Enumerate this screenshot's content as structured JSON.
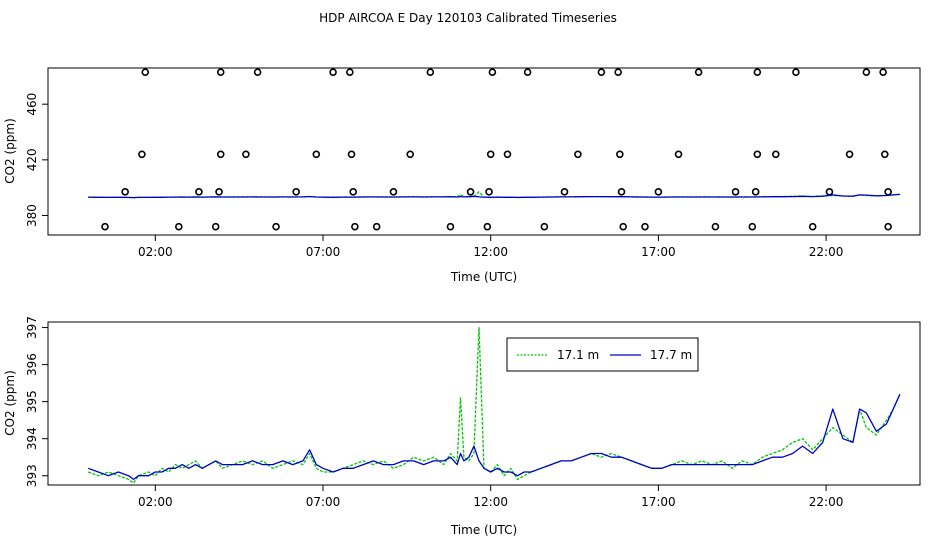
{
  "page_title": "HDP AIRCOA E  Day 120103  Calibrated Timeseries",
  "colors": {
    "series_171": "#00c800",
    "series_177": "#0000cc",
    "frame": "#000000"
  },
  "chart_data": [
    {
      "id": "top",
      "type": "scatter+line",
      "xlabel": "Time (UTC)",
      "ylabel": "CO2 (ppm)",
      "x_unit": "hours since 00:00 UTC",
      "xlim": [
        -1.2,
        24.8
      ],
      "ylim": [
        366,
        486
      ],
      "x_ticks": [
        2,
        7,
        12,
        17,
        22
      ],
      "x_tick_labels": [
        "02:00",
        "07:00",
        "12:00",
        "17:00",
        "22:00"
      ],
      "y_ticks": [
        380,
        420,
        460
      ],
      "y_tick_labels": [
        "380",
        "420",
        "460"
      ],
      "markers": {
        "name": "flag markers",
        "points": [
          [
            0.5,
            372
          ],
          [
            1.1,
            397
          ],
          [
            1.6,
            424
          ],
          [
            1.7,
            483
          ],
          [
            2.7,
            372
          ],
          [
            3.3,
            397
          ],
          [
            3.8,
            372
          ],
          [
            3.9,
            397
          ],
          [
            3.95,
            424
          ],
          [
            3.95,
            483
          ],
          [
            4.7,
            424
          ],
          [
            5.05,
            483
          ],
          [
            5.6,
            372
          ],
          [
            6.2,
            397
          ],
          [
            6.8,
            424
          ],
          [
            7.3,
            483
          ],
          [
            7.8,
            483
          ],
          [
            7.85,
            424
          ],
          [
            7.9,
            397
          ],
          [
            7.95,
            372
          ],
          [
            8.6,
            372
          ],
          [
            9.1,
            397
          ],
          [
            9.6,
            424
          ],
          [
            10.2,
            483
          ],
          [
            10.8,
            372
          ],
          [
            11.4,
            397
          ],
          [
            11.9,
            372
          ],
          [
            11.95,
            397
          ],
          [
            12.0,
            424
          ],
          [
            12.05,
            483
          ],
          [
            12.5,
            424
          ],
          [
            13.1,
            483
          ],
          [
            13.6,
            372
          ],
          [
            14.2,
            397
          ],
          [
            14.6,
            424
          ],
          [
            15.3,
            483
          ],
          [
            15.8,
            483
          ],
          [
            15.85,
            424
          ],
          [
            15.9,
            397
          ],
          [
            15.95,
            372
          ],
          [
            16.6,
            372
          ],
          [
            17.0,
            397
          ],
          [
            17.6,
            424
          ],
          [
            18.2,
            483
          ],
          [
            18.7,
            372
          ],
          [
            19.3,
            397
          ],
          [
            19.8,
            372
          ],
          [
            19.9,
            397
          ],
          [
            19.95,
            424
          ],
          [
            19.95,
            483
          ],
          [
            20.5,
            424
          ],
          [
            21.1,
            483
          ],
          [
            21.6,
            372
          ],
          [
            22.1,
            397
          ],
          [
            22.7,
            424
          ],
          [
            23.2,
            483
          ],
          [
            23.7,
            483
          ],
          [
            23.75,
            424
          ],
          [
            23.85,
            397
          ],
          [
            23.85,
            372
          ]
        ]
      },
      "series_ref": "shared"
    },
    {
      "id": "bottom",
      "type": "line",
      "xlabel": "Time (UTC)",
      "ylabel": "CO2 (ppm)",
      "x_unit": "hours since 00:00 UTC",
      "xlim": [
        -1.2,
        24.8
      ],
      "ylim": [
        392.75,
        397.15
      ],
      "x_ticks": [
        2,
        7,
        12,
        17,
        22
      ],
      "x_tick_labels": [
        "02:00",
        "07:00",
        "12:00",
        "17:00",
        "22:00"
      ],
      "y_ticks": [
        393,
        394,
        395,
        396,
        397
      ],
      "y_tick_labels": [
        "393",
        "394",
        "395",
        "396",
        "397"
      ],
      "legend": {
        "position": "top-center",
        "entries": [
          "17.1 m",
          "17.7 m"
        ]
      },
      "series": [
        {
          "name": "17.1 m",
          "color": "#00c800",
          "points": [
            [
              0.0,
              393.1
            ],
            [
              0.3,
              393.0
            ],
            [
              0.6,
              393.1
            ],
            [
              0.9,
              393.0
            ],
            [
              1.2,
              392.9
            ],
            [
              1.35,
              392.8
            ],
            [
              1.5,
              393.0
            ],
            [
              1.8,
              393.1
            ],
            [
              2.0,
              393.0
            ],
            [
              2.2,
              393.2
            ],
            [
              2.4,
              393.1
            ],
            [
              2.6,
              393.3
            ],
            [
              2.8,
              393.2
            ],
            [
              3.0,
              393.3
            ],
            [
              3.2,
              393.4
            ],
            [
              3.4,
              393.2
            ],
            [
              3.6,
              393.3
            ],
            [
              3.8,
              393.4
            ],
            [
              4.0,
              393.2
            ],
            [
              4.3,
              393.3
            ],
            [
              4.6,
              393.4
            ],
            [
              4.9,
              393.3
            ],
            [
              5.2,
              393.4
            ],
            [
              5.5,
              393.2
            ],
            [
              5.8,
              393.3
            ],
            [
              6.1,
              393.4
            ],
            [
              6.4,
              393.3
            ],
            [
              6.6,
              393.6
            ],
            [
              6.8,
              393.2
            ],
            [
              7.0,
              393.1
            ],
            [
              7.3,
              393.1
            ],
            [
              7.6,
              393.2
            ],
            [
              7.9,
              393.3
            ],
            [
              8.2,
              393.4
            ],
            [
              8.5,
              393.3
            ],
            [
              8.8,
              393.4
            ],
            [
              9.1,
              393.2
            ],
            [
              9.4,
              393.3
            ],
            [
              9.7,
              393.5
            ],
            [
              10.0,
              393.4
            ],
            [
              10.3,
              393.5
            ],
            [
              10.6,
              393.3
            ],
            [
              10.8,
              393.6
            ],
            [
              11.0,
              393.4
            ],
            [
              11.1,
              395.1
            ],
            [
              11.2,
              393.5
            ],
            [
              11.35,
              393.4
            ],
            [
              11.5,
              393.6
            ],
            [
              11.65,
              397.0
            ],
            [
              11.8,
              393.2
            ],
            [
              12.0,
              393.1
            ],
            [
              12.2,
              393.3
            ],
            [
              12.4,
              393.0
            ],
            [
              12.6,
              393.2
            ],
            [
              12.8,
              392.9
            ],
            [
              13.0,
              393.0
            ],
            [
              13.2,
              393.1
            ],
            [
              13.5,
              393.2
            ],
            [
              13.8,
              393.3
            ],
            [
              14.1,
              393.4
            ],
            [
              14.4,
              393.4
            ],
            [
              14.7,
              393.5
            ],
            [
              15.0,
              393.6
            ],
            [
              15.3,
              393.5
            ],
            [
              15.6,
              393.6
            ],
            [
              15.9,
              393.5
            ],
            [
              16.2,
              393.4
            ],
            [
              16.5,
              393.3
            ],
            [
              16.8,
              393.2
            ],
            [
              17.1,
              393.2
            ],
            [
              17.4,
              393.3
            ],
            [
              17.7,
              393.4
            ],
            [
              18.0,
              393.3
            ],
            [
              18.3,
              393.4
            ],
            [
              18.6,
              393.3
            ],
            [
              18.9,
              393.4
            ],
            [
              19.2,
              393.2
            ],
            [
              19.5,
              393.4
            ],
            [
              19.8,
              393.3
            ],
            [
              20.1,
              393.5
            ],
            [
              20.4,
              393.6
            ],
            [
              20.7,
              393.7
            ],
            [
              21.0,
              393.9
            ],
            [
              21.3,
              394.0
            ],
            [
              21.6,
              393.7
            ],
            [
              21.9,
              394.0
            ],
            [
              22.2,
              394.3
            ],
            [
              22.5,
              394.1
            ],
            [
              22.8,
              393.9
            ],
            [
              23.0,
              394.8
            ],
            [
              23.2,
              394.3
            ],
            [
              23.5,
              394.1
            ],
            [
              23.8,
              394.5
            ],
            [
              24.0,
              394.8
            ],
            [
              24.2,
              395.2
            ]
          ]
        },
        {
          "name": "17.7 m",
          "color": "#0000cc",
          "points": [
            [
              0.0,
              393.2
            ],
            [
              0.3,
              393.1
            ],
            [
              0.6,
              393.0
            ],
            [
              0.9,
              393.1
            ],
            [
              1.2,
              393.0
            ],
            [
              1.35,
              392.9
            ],
            [
              1.5,
              393.0
            ],
            [
              1.8,
              393.0
            ],
            [
              2.0,
              393.1
            ],
            [
              2.2,
              393.1
            ],
            [
              2.4,
              393.2
            ],
            [
              2.6,
              393.2
            ],
            [
              2.8,
              393.3
            ],
            [
              3.0,
              393.2
            ],
            [
              3.2,
              393.3
            ],
            [
              3.4,
              393.2
            ],
            [
              3.6,
              393.3
            ],
            [
              3.8,
              393.4
            ],
            [
              4.0,
              393.3
            ],
            [
              4.3,
              393.3
            ],
            [
              4.6,
              393.3
            ],
            [
              4.9,
              393.4
            ],
            [
              5.2,
              393.3
            ],
            [
              5.5,
              393.3
            ],
            [
              5.8,
              393.4
            ],
            [
              6.1,
              393.3
            ],
            [
              6.4,
              393.4
            ],
            [
              6.6,
              393.7
            ],
            [
              6.8,
              393.3
            ],
            [
              7.0,
              393.2
            ],
            [
              7.3,
              393.1
            ],
            [
              7.6,
              393.2
            ],
            [
              7.9,
              393.2
            ],
            [
              8.2,
              393.3
            ],
            [
              8.5,
              393.4
            ],
            [
              8.8,
              393.3
            ],
            [
              9.1,
              393.3
            ],
            [
              9.4,
              393.4
            ],
            [
              9.7,
              393.4
            ],
            [
              10.0,
              393.3
            ],
            [
              10.3,
              393.4
            ],
            [
              10.6,
              393.4
            ],
            [
              10.8,
              393.5
            ],
            [
              11.0,
              393.3
            ],
            [
              11.1,
              393.6
            ],
            [
              11.2,
              393.4
            ],
            [
              11.35,
              393.5
            ],
            [
              11.5,
              393.8
            ],
            [
              11.65,
              393.4
            ],
            [
              11.8,
              393.2
            ],
            [
              12.0,
              393.1
            ],
            [
              12.2,
              393.2
            ],
            [
              12.4,
              393.1
            ],
            [
              12.6,
              393.1
            ],
            [
              12.8,
              393.0
            ],
            [
              13.0,
              393.1
            ],
            [
              13.2,
              393.1
            ],
            [
              13.5,
              393.2
            ],
            [
              13.8,
              393.3
            ],
            [
              14.1,
              393.4
            ],
            [
              14.4,
              393.4
            ],
            [
              14.7,
              393.5
            ],
            [
              15.0,
              393.6
            ],
            [
              15.3,
              393.6
            ],
            [
              15.6,
              393.5
            ],
            [
              15.9,
              393.5
            ],
            [
              16.2,
              393.4
            ],
            [
              16.5,
              393.3
            ],
            [
              16.8,
              393.2
            ],
            [
              17.1,
              393.2
            ],
            [
              17.4,
              393.3
            ],
            [
              17.7,
              393.3
            ],
            [
              18.0,
              393.3
            ],
            [
              18.3,
              393.3
            ],
            [
              18.6,
              393.3
            ],
            [
              18.9,
              393.3
            ],
            [
              19.2,
              393.3
            ],
            [
              19.5,
              393.3
            ],
            [
              19.8,
              393.3
            ],
            [
              20.1,
              393.4
            ],
            [
              20.4,
              393.5
            ],
            [
              20.7,
              393.5
            ],
            [
              21.0,
              393.6
            ],
            [
              21.3,
              393.8
            ],
            [
              21.6,
              393.6
            ],
            [
              21.9,
              393.9
            ],
            [
              22.2,
              394.8
            ],
            [
              22.5,
              394.0
            ],
            [
              22.8,
              393.9
            ],
            [
              23.0,
              394.8
            ],
            [
              23.2,
              394.7
            ],
            [
              23.5,
              394.2
            ],
            [
              23.8,
              394.4
            ],
            [
              24.0,
              394.8
            ],
            [
              24.2,
              395.2
            ]
          ]
        }
      ]
    }
  ]
}
